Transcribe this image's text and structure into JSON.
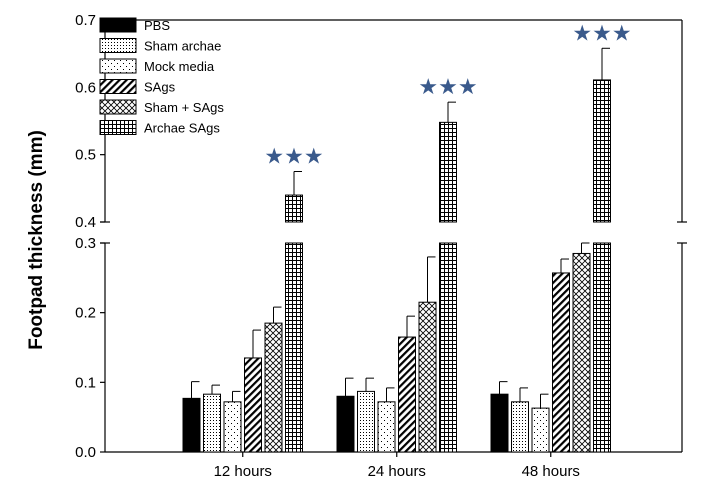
{
  "chart_data": {
    "type": "bar",
    "ylabel": "Footpad thickness (mm)",
    "xlabel": "",
    "categories": [
      "12 hours",
      "24 hours",
      "48 hours"
    ],
    "y_axis_break": {
      "lower_range": [
        0.0,
        0.3
      ],
      "upper_range": [
        0.4,
        0.7
      ]
    },
    "lower_ticks": [
      "0.0",
      "0.1",
      "0.2",
      "0.3"
    ],
    "upper_ticks": [
      "0.4",
      "0.5",
      "0.6",
      "0.7"
    ],
    "legend_position": "top-left",
    "series": [
      {
        "name": "PBS",
        "pattern": "solid-black",
        "values": [
          0.077,
          0.08,
          0.083
        ],
        "errors": [
          0.024,
          0.026,
          0.018
        ]
      },
      {
        "name": "Sham archae",
        "pattern": "fine-dots",
        "values": [
          0.083,
          0.087,
          0.072
        ],
        "errors": [
          0.013,
          0.019,
          0.02
        ]
      },
      {
        "name": "Mock media",
        "pattern": "sparse-dots",
        "values": [
          0.072,
          0.072,
          0.063
        ],
        "errors": [
          0.015,
          0.02,
          0.02
        ]
      },
      {
        "name": "SAgs",
        "pattern": "diagonal-hatch",
        "values": [
          0.135,
          0.165,
          0.257
        ],
        "errors": [
          0.04,
          0.03,
          0.02
        ]
      },
      {
        "name": "Sham + SAgs",
        "pattern": "cross-hatch",
        "values": [
          0.185,
          0.215,
          0.285
        ],
        "errors": [
          0.023,
          0.065,
          0.015
        ]
      },
      {
        "name": "Archae SAgs",
        "pattern": "grid",
        "values": [
          0.44,
          0.548,
          0.611
        ],
        "errors": [
          0.035,
          0.03,
          0.047
        ]
      }
    ],
    "significance": [
      "★★★",
      "★★★",
      "★★★"
    ],
    "star_color": "#3a5a8c"
  }
}
